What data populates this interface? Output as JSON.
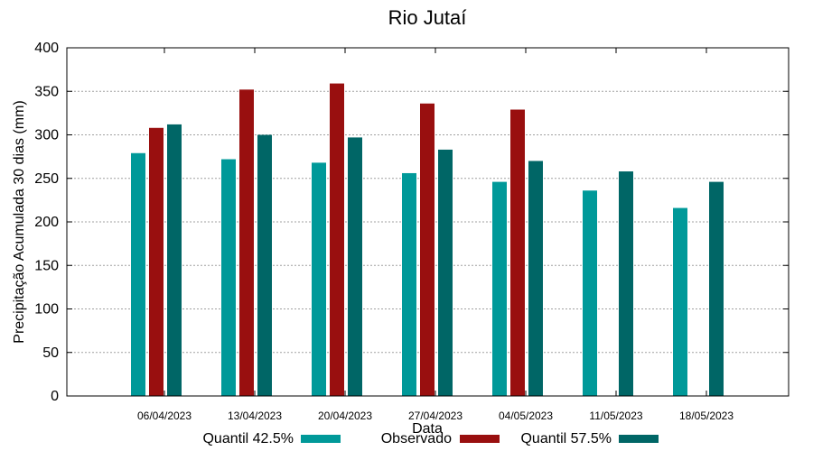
{
  "chart_data": {
    "type": "bar",
    "title": "Rio Jutaí",
    "xlabel": "Data",
    "ylabel": "Precipitação Acumulada 30 dias (mm)",
    "ylim": [
      0,
      400
    ],
    "yticks": [
      0,
      50,
      100,
      150,
      200,
      250,
      300,
      350,
      400
    ],
    "grid": true,
    "legend_position": "bottom",
    "categories": [
      "06/04/2023",
      "13/04/2023",
      "20/04/2023",
      "27/04/2023",
      "04/05/2023",
      "11/05/2023",
      "18/05/2023"
    ],
    "series": [
      {
        "name": "Quantil 42.5%",
        "color": "#009999",
        "values": [
          279,
          272,
          268,
          256,
          246,
          236,
          216
        ]
      },
      {
        "name": "Observado",
        "color": "#990f0f",
        "values": [
          308,
          352,
          359,
          336,
          329,
          null,
          null
        ]
      },
      {
        "name": "Quantil 57.5%",
        "color": "#006666",
        "values": [
          312,
          300,
          297,
          283,
          270,
          258,
          246
        ]
      }
    ]
  }
}
